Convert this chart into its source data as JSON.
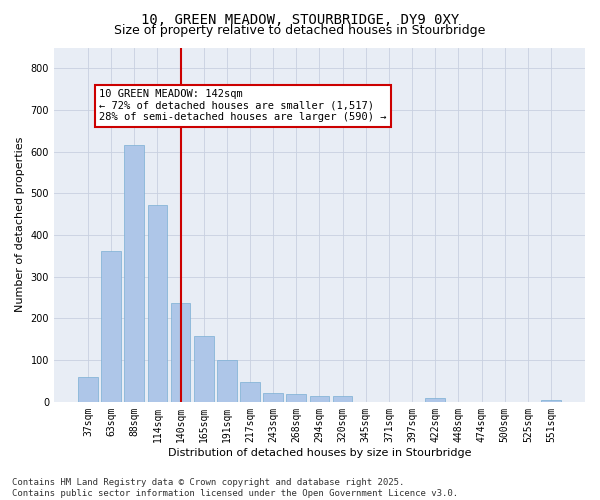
{
  "title_line1": "10, GREEN MEADOW, STOURBRIDGE, DY9 0XY",
  "title_line2": "Size of property relative to detached houses in Stourbridge",
  "xlabel": "Distribution of detached houses by size in Stourbridge",
  "ylabel": "Number of detached properties",
  "categories": [
    "37sqm",
    "63sqm",
    "88sqm",
    "114sqm",
    "140sqm",
    "165sqm",
    "191sqm",
    "217sqm",
    "243sqm",
    "268sqm",
    "294sqm",
    "320sqm",
    "345sqm",
    "371sqm",
    "397sqm",
    "422sqm",
    "448sqm",
    "474sqm",
    "500sqm",
    "525sqm",
    "551sqm"
  ],
  "values": [
    60,
    362,
    617,
    473,
    237,
    158,
    100,
    47,
    22,
    18,
    15,
    13,
    0,
    0,
    0,
    8,
    0,
    0,
    0,
    0,
    5
  ],
  "bar_color": "#aec6e8",
  "bar_edge_color": "#7aafd4",
  "vline_x": 4,
  "vline_color": "#cc0000",
  "annotation_text": "10 GREEN MEADOW: 142sqm\n← 72% of detached houses are smaller (1,517)\n28% of semi-detached houses are larger (590) →",
  "annotation_box_color": "#ffffff",
  "annotation_box_edge": "#cc0000",
  "ylim": [
    0,
    850
  ],
  "yticks": [
    0,
    100,
    200,
    300,
    400,
    500,
    600,
    700,
    800
  ],
  "grid_color": "#c8d0e0",
  "background_color": "#e8edf5",
  "footer_line1": "Contains HM Land Registry data © Crown copyright and database right 2025.",
  "footer_line2": "Contains public sector information licensed under the Open Government Licence v3.0.",
  "title_fontsize": 10,
  "subtitle_fontsize": 9,
  "axis_label_fontsize": 8,
  "tick_fontsize": 7,
  "annotation_fontsize": 7.5,
  "footer_fontsize": 6.5
}
